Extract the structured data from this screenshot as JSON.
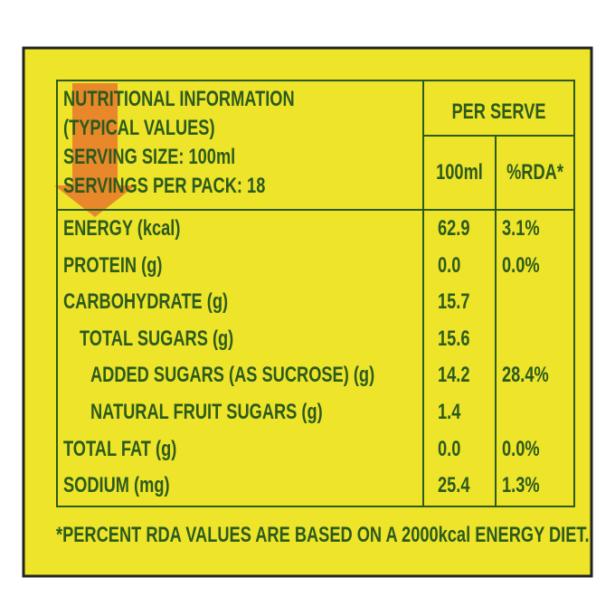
{
  "header": {
    "lines": [
      "NUTRITIONAL INFORMATION",
      "(TYPICAL VALUES)",
      "SERVING SIZE: 100ml",
      "SERVINGS PER PACK: 18"
    ],
    "per_serve": "PER SERVE",
    "columns": [
      "100ml",
      "%RDA*"
    ]
  },
  "table": {
    "rows": [
      [
        "ENERGY (kcal)",
        "62.9",
        "3.1%"
      ],
      [
        "PROTEIN (g)",
        "0.0",
        "0.0%"
      ],
      [
        "CARBOHYDRATE (g)",
        "15.7",
        null
      ],
      [
        "TOTAL SUGARS (g)",
        "15.6",
        null
      ],
      [
        "ADDED SUGARS (AS SUCROSE) (g)",
        "14.2",
        "28.4%"
      ],
      [
        "NATURAL FRUIT SUGARS (g)",
        "1.4",
        null
      ],
      [
        "TOTAL FAT (g)",
        "0.0",
        "0.0%"
      ],
      [
        "SODIUM (mg)",
        "25.4",
        "1.3%"
      ]
    ]
  },
  "footnote": "*PERCENT RDA VALUES ARE BASED ON A 2000kcal ENERGY DIET."
}
